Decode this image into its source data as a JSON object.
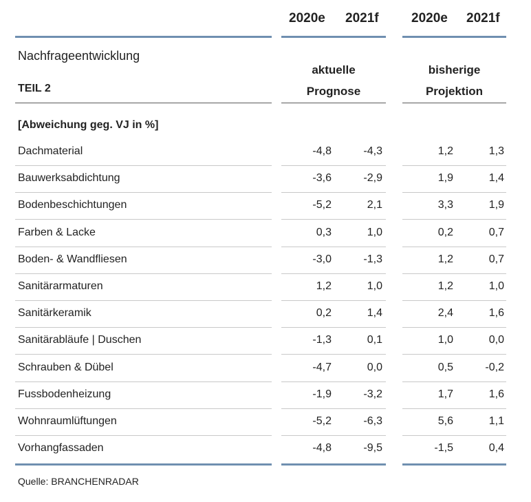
{
  "header": {
    "years": [
      "2020e",
      "2021f",
      "2020e",
      "2021f"
    ],
    "title": "Nachfrageentwicklung",
    "subtitle": "TEIL 2",
    "group_current": [
      "aktuelle",
      "Prognose"
    ],
    "group_previous": [
      "bisherige",
      "Projektion"
    ],
    "unit_label": "[Abweichung geg. VJ in %]"
  },
  "table": {
    "rows": [
      {
        "label": "Dachmaterial",
        "values": [
          "-4,8",
          "-4,3",
          "1,2",
          "1,3"
        ]
      },
      {
        "label": "Bauwerksabdichtung",
        "values": [
          "-3,6",
          "-2,9",
          "1,9",
          "1,4"
        ]
      },
      {
        "label": "Bodenbeschichtungen",
        "values": [
          "-5,2",
          "2,1",
          "3,3",
          "1,9"
        ]
      },
      {
        "label": "Farben & Lacke",
        "values": [
          "0,3",
          "1,0",
          "0,2",
          "0,7"
        ]
      },
      {
        "label": "Boden- & Wandfliesen",
        "values": [
          "-3,0",
          "-1,3",
          "1,2",
          "0,7"
        ]
      },
      {
        "label": "Sanitärarmaturen",
        "values": [
          "1,2",
          "1,0",
          "1,2",
          "1,0"
        ]
      },
      {
        "label": "Sanitärkeramik",
        "values": [
          "0,2",
          "1,4",
          "2,4",
          "1,6"
        ]
      },
      {
        "label": "Sanitärabläufe | Duschen",
        "values": [
          "-1,3",
          "0,1",
          "1,0",
          "0,0"
        ]
      },
      {
        "label": "Schrauben & Dübel",
        "values": [
          "-4,7",
          "0,0",
          "0,5",
          "-0,2"
        ]
      },
      {
        "label": "Fussbodenheizung",
        "values": [
          "-1,9",
          "-3,2",
          "1,7",
          "1,6"
        ]
      },
      {
        "label": "Wohnraumlüftungen",
        "values": [
          "-5,2",
          "-6,3",
          "5,6",
          "1,1"
        ]
      },
      {
        "label": "Vorhangfassaden",
        "values": [
          "-4,8",
          "-9,5",
          "-1,5",
          "0,4"
        ]
      }
    ]
  },
  "footer": {
    "source": "Quelle: BRANCHENRADAR"
  }
}
